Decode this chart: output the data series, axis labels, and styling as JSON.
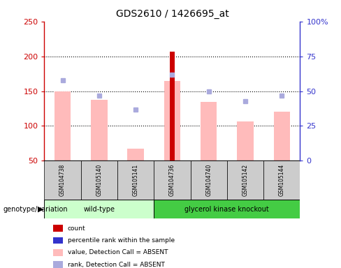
{
  "title": "GDS2610 / 1426695_at",
  "samples": [
    "GSM104738",
    "GSM105140",
    "GSM105141",
    "GSM104736",
    "GSM104740",
    "GSM105142",
    "GSM105144"
  ],
  "pink_bar_values": [
    150,
    138,
    67,
    165,
    135,
    106,
    121
  ],
  "red_bar_value": 207,
  "red_bar_index": 3,
  "blue_dot_right_values": [
    58,
    47,
    37,
    62,
    50,
    43,
    47
  ],
  "ylim_left": [
    50,
    250
  ],
  "ylim_right": [
    0,
    100
  ],
  "yticks_left": [
    50,
    100,
    150,
    200,
    250
  ],
  "yticks_right": [
    0,
    25,
    50,
    75,
    100
  ],
  "ytick_labels_left": [
    "50",
    "100",
    "150",
    "200",
    "250"
  ],
  "ytick_labels_right": [
    "0",
    "25",
    "50",
    "75",
    "100%"
  ],
  "left_axis_color": "#cc0000",
  "right_axis_color": "#3333cc",
  "pink_bar_color": "#ffbbbb",
  "red_bar_color": "#cc0000",
  "blue_dot_color": "#aaaadd",
  "wild_type_color_light": "#ccffcc",
  "wild_type_color_dark": "#44dd44",
  "knockout_color_light": "#ccffcc",
  "knockout_color_dark": "#44dd44",
  "wt_box_color": "#ccffcc",
  "ko_box_color": "#44cc44",
  "sample_box_color": "#cccccc",
  "wt_indices": [
    0,
    1,
    2
  ],
  "ko_indices": [
    3,
    4,
    5,
    6
  ],
  "legend_items": [
    {
      "color": "#cc0000",
      "label": "count"
    },
    {
      "color": "#3333cc",
      "label": "percentile rank within the sample"
    },
    {
      "color": "#ffbbbb",
      "label": "value, Detection Call = ABSENT"
    },
    {
      "color": "#aaaadd",
      "label": "rank, Detection Call = ABSENT"
    }
  ]
}
